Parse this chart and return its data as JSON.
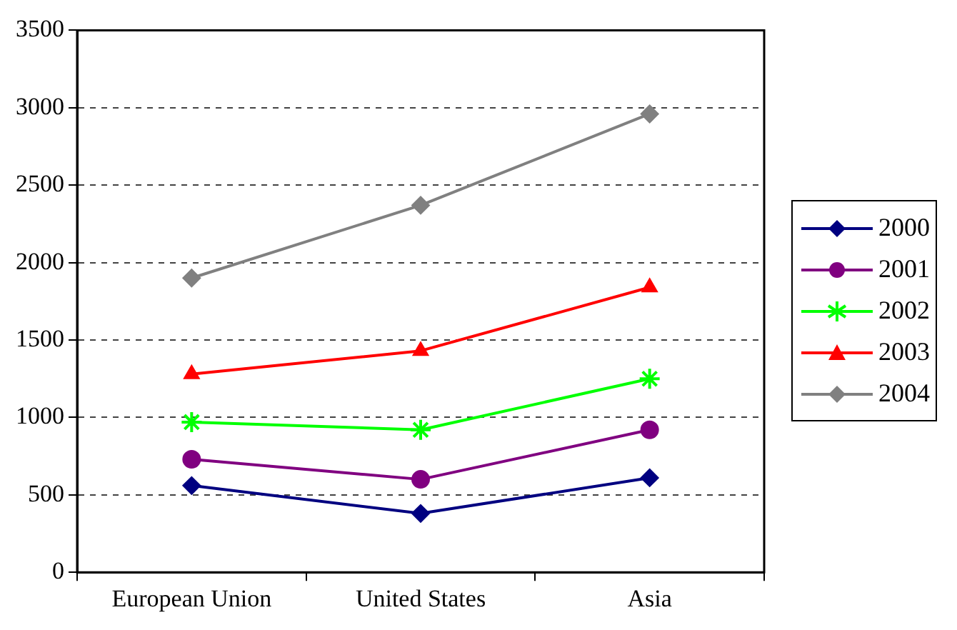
{
  "chart_data": {
    "type": "line",
    "categories": [
      "European Union",
      "United States",
      "Asia"
    ],
    "series": [
      {
        "name": "2000",
        "color": "#000080",
        "marker": "diamond",
        "values": [
          560,
          380,
          610
        ]
      },
      {
        "name": "2001",
        "color": "#800080",
        "marker": "circle",
        "values": [
          730,
          600,
          920
        ]
      },
      {
        "name": "2002",
        "color": "#00ff00",
        "marker": "cross",
        "values": [
          970,
          920,
          1250
        ]
      },
      {
        "name": "2003",
        "color": "#ff0000",
        "marker": "triangle",
        "values": [
          1280,
          1430,
          1840
        ]
      },
      {
        "name": "2004",
        "color": "#808080",
        "marker": "diamond",
        "values": [
          1900,
          2370,
          2960
        ]
      }
    ],
    "ylim": [
      0,
      3500
    ],
    "yticks": [
      0,
      500,
      1000,
      1500,
      2000,
      2500,
      3000,
      3500
    ],
    "grid": "y",
    "legend": "right",
    "line_style": "solid"
  }
}
